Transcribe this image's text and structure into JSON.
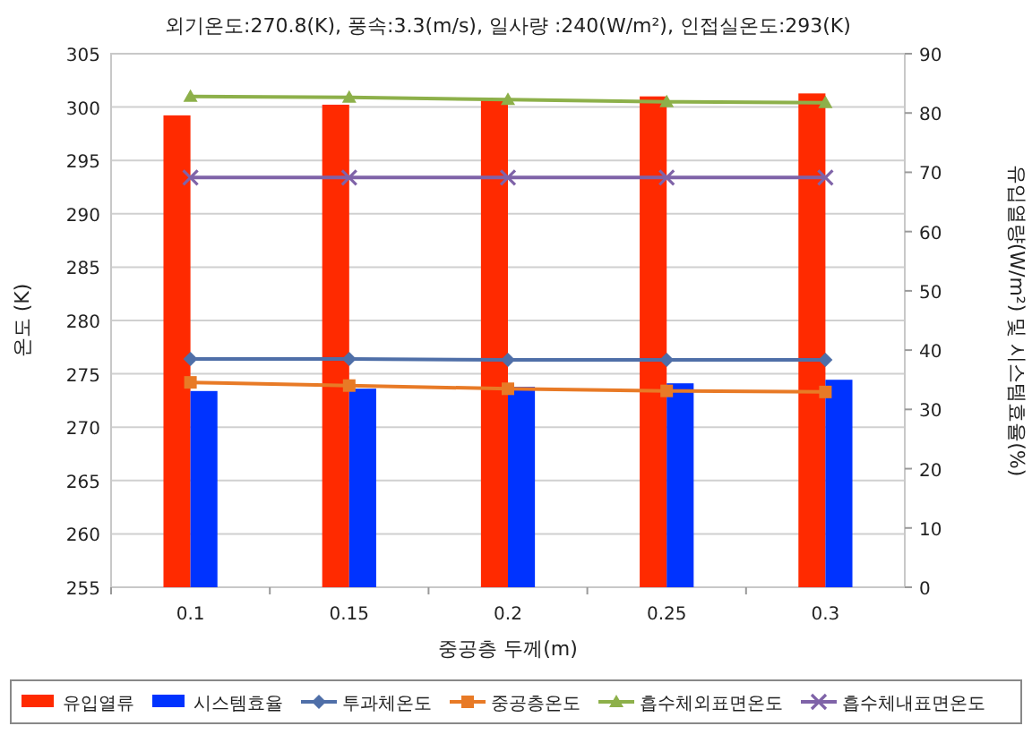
{
  "chart_data": {
    "type": "bar",
    "title": "외기온도:270.8(K), 풍속:3.3(m/s), 일사량 :240(W/m²), 인접실온도:293(K)",
    "xlabel": "중공층 두께(m)",
    "ylabel": "온도 (K)",
    "y2label": "유입열량(W/m²) 및 시스템효율(%)",
    "categories": [
      "0.1",
      "0.15",
      "0.2",
      "0.25",
      "0.3"
    ],
    "series": [
      {
        "name": "유입열류",
        "axis": "y2",
        "color": "#ff2a00",
        "values": [
          79.6,
          81.4,
          82.4,
          82.8,
          83.3
        ]
      },
      {
        "name": "시스템효율",
        "axis": "y2",
        "color": "#0033ff",
        "values": [
          33.1,
          33.5,
          33.8,
          34.4,
          35.0
        ]
      },
      {
        "name": "투과체온도",
        "type": "line",
        "marker": "diamond",
        "color": "#4f6fa8",
        "values": [
          276.4,
          276.4,
          276.3,
          276.3,
          276.3
        ]
      },
      {
        "name": "중공층온도",
        "type": "line",
        "marker": "square",
        "color": "#e87a26",
        "values": [
          274.2,
          273.9,
          273.6,
          273.4,
          273.3
        ]
      },
      {
        "name": "흡수체외표면온도",
        "type": "line",
        "marker": "triangle",
        "color": "#8db04a",
        "values": [
          301.0,
          300.9,
          300.7,
          300.5,
          300.4
        ]
      },
      {
        "name": "흡수체내표면온도",
        "type": "line",
        "marker": "cross",
        "color": "#7f63a8",
        "values": [
          293.4,
          293.4,
          293.4,
          293.4,
          293.4
        ]
      }
    ],
    "ylim": [
      255,
      305
    ],
    "yticks": [
      255,
      260,
      265,
      270,
      275,
      280,
      285,
      290,
      295,
      300,
      305
    ],
    "y2lim": [
      0,
      90
    ],
    "y2ticks": [
      0,
      10,
      20,
      30,
      40,
      50,
      60,
      70,
      80,
      90
    ],
    "grid": "y",
    "legend": "bottom"
  }
}
